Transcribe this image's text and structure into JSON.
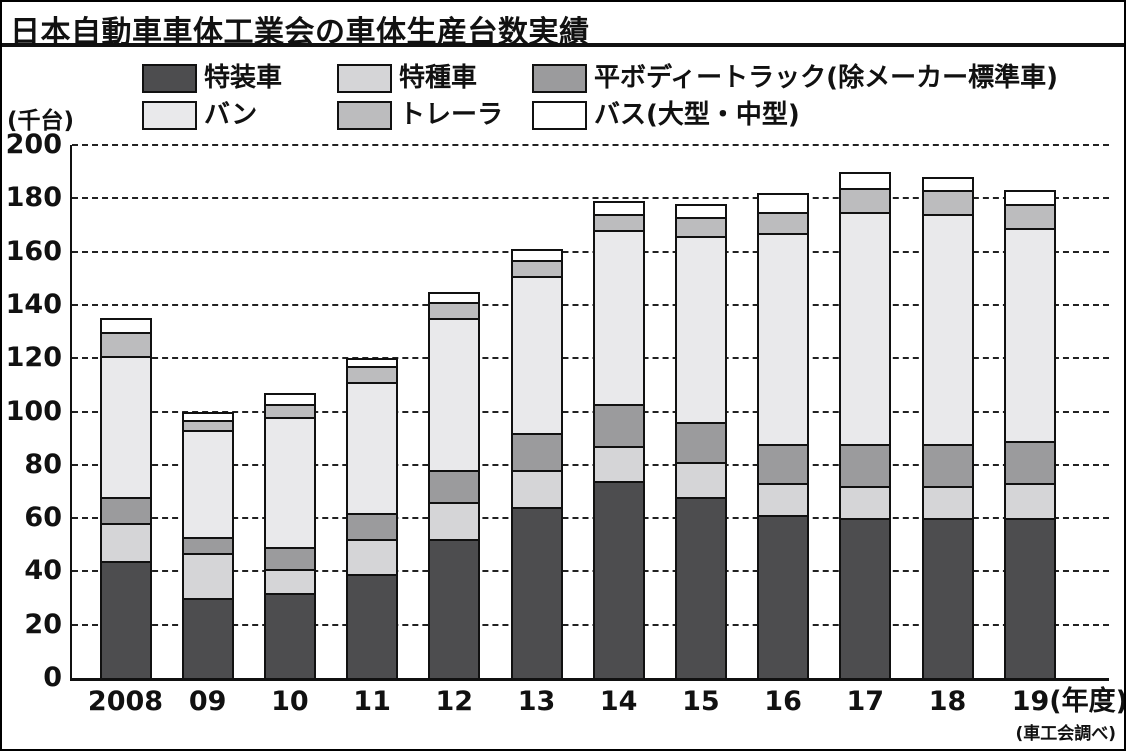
{
  "title": "日本自動車車体工業会の車体生産台数実績",
  "y_axis_unit": "(千台)",
  "x_axis_suffix": "(年度)",
  "source_note": "(車工会調べ)",
  "colors": {
    "ink": "#111111",
    "background": "#ffffff",
    "tokusou": "#4d4d4f",
    "tokushu": "#d5d5d7",
    "hira_body_truck": "#9b9b9d",
    "van": "#e9e9eb",
    "trailer": "#bcbcbe",
    "bus": "#ffffff"
  },
  "chart_data": {
    "type": "bar",
    "stacked": true,
    "title": "日本自動車車体工業会の車体生産台数実績",
    "xlabel": "年度",
    "ylabel": "千台",
    "ylim": [
      0,
      200
    ],
    "ytick_step": 20,
    "grid": "dashed-horizontal",
    "legend_position": "top",
    "categories": [
      "2008",
      "09",
      "10",
      "11",
      "12",
      "13",
      "14",
      "15",
      "16",
      "17",
      "18",
      "19"
    ],
    "series": [
      {
        "name": "特装車",
        "color": "#4d4d4f",
        "values": [
          44,
          30,
          32,
          39,
          52,
          64,
          74,
          68,
          61,
          60,
          60,
          60
        ]
      },
      {
        "name": "特種車",
        "color": "#d5d5d7",
        "values": [
          14,
          17,
          9,
          13,
          14,
          14,
          13,
          13,
          12,
          12,
          12,
          13
        ]
      },
      {
        "name": "平ボディートラック(除メーカー標準車)",
        "color": "#9b9b9d",
        "values": [
          10,
          6,
          8,
          10,
          12,
          14,
          16,
          15,
          15,
          16,
          16,
          16
        ]
      },
      {
        "name": "バン",
        "color": "#e9e9eb",
        "values": [
          53,
          40,
          49,
          49,
          57,
          59,
          65,
          70,
          79,
          87,
          86,
          80
        ]
      },
      {
        "name": "トレーラ",
        "color": "#bcbcbe",
        "values": [
          9,
          4,
          5,
          6,
          6,
          6,
          6,
          7,
          8,
          9,
          9,
          9
        ]
      },
      {
        "name": "バス(大型・中型)",
        "color": "#ffffff",
        "values": [
          5,
          3,
          4,
          3,
          4,
          4,
          5,
          5,
          7,
          6,
          5,
          5
        ]
      }
    ],
    "totals": [
      135,
      100,
      107,
      120,
      145,
      161,
      179,
      178,
      182,
      190,
      188,
      183
    ]
  }
}
